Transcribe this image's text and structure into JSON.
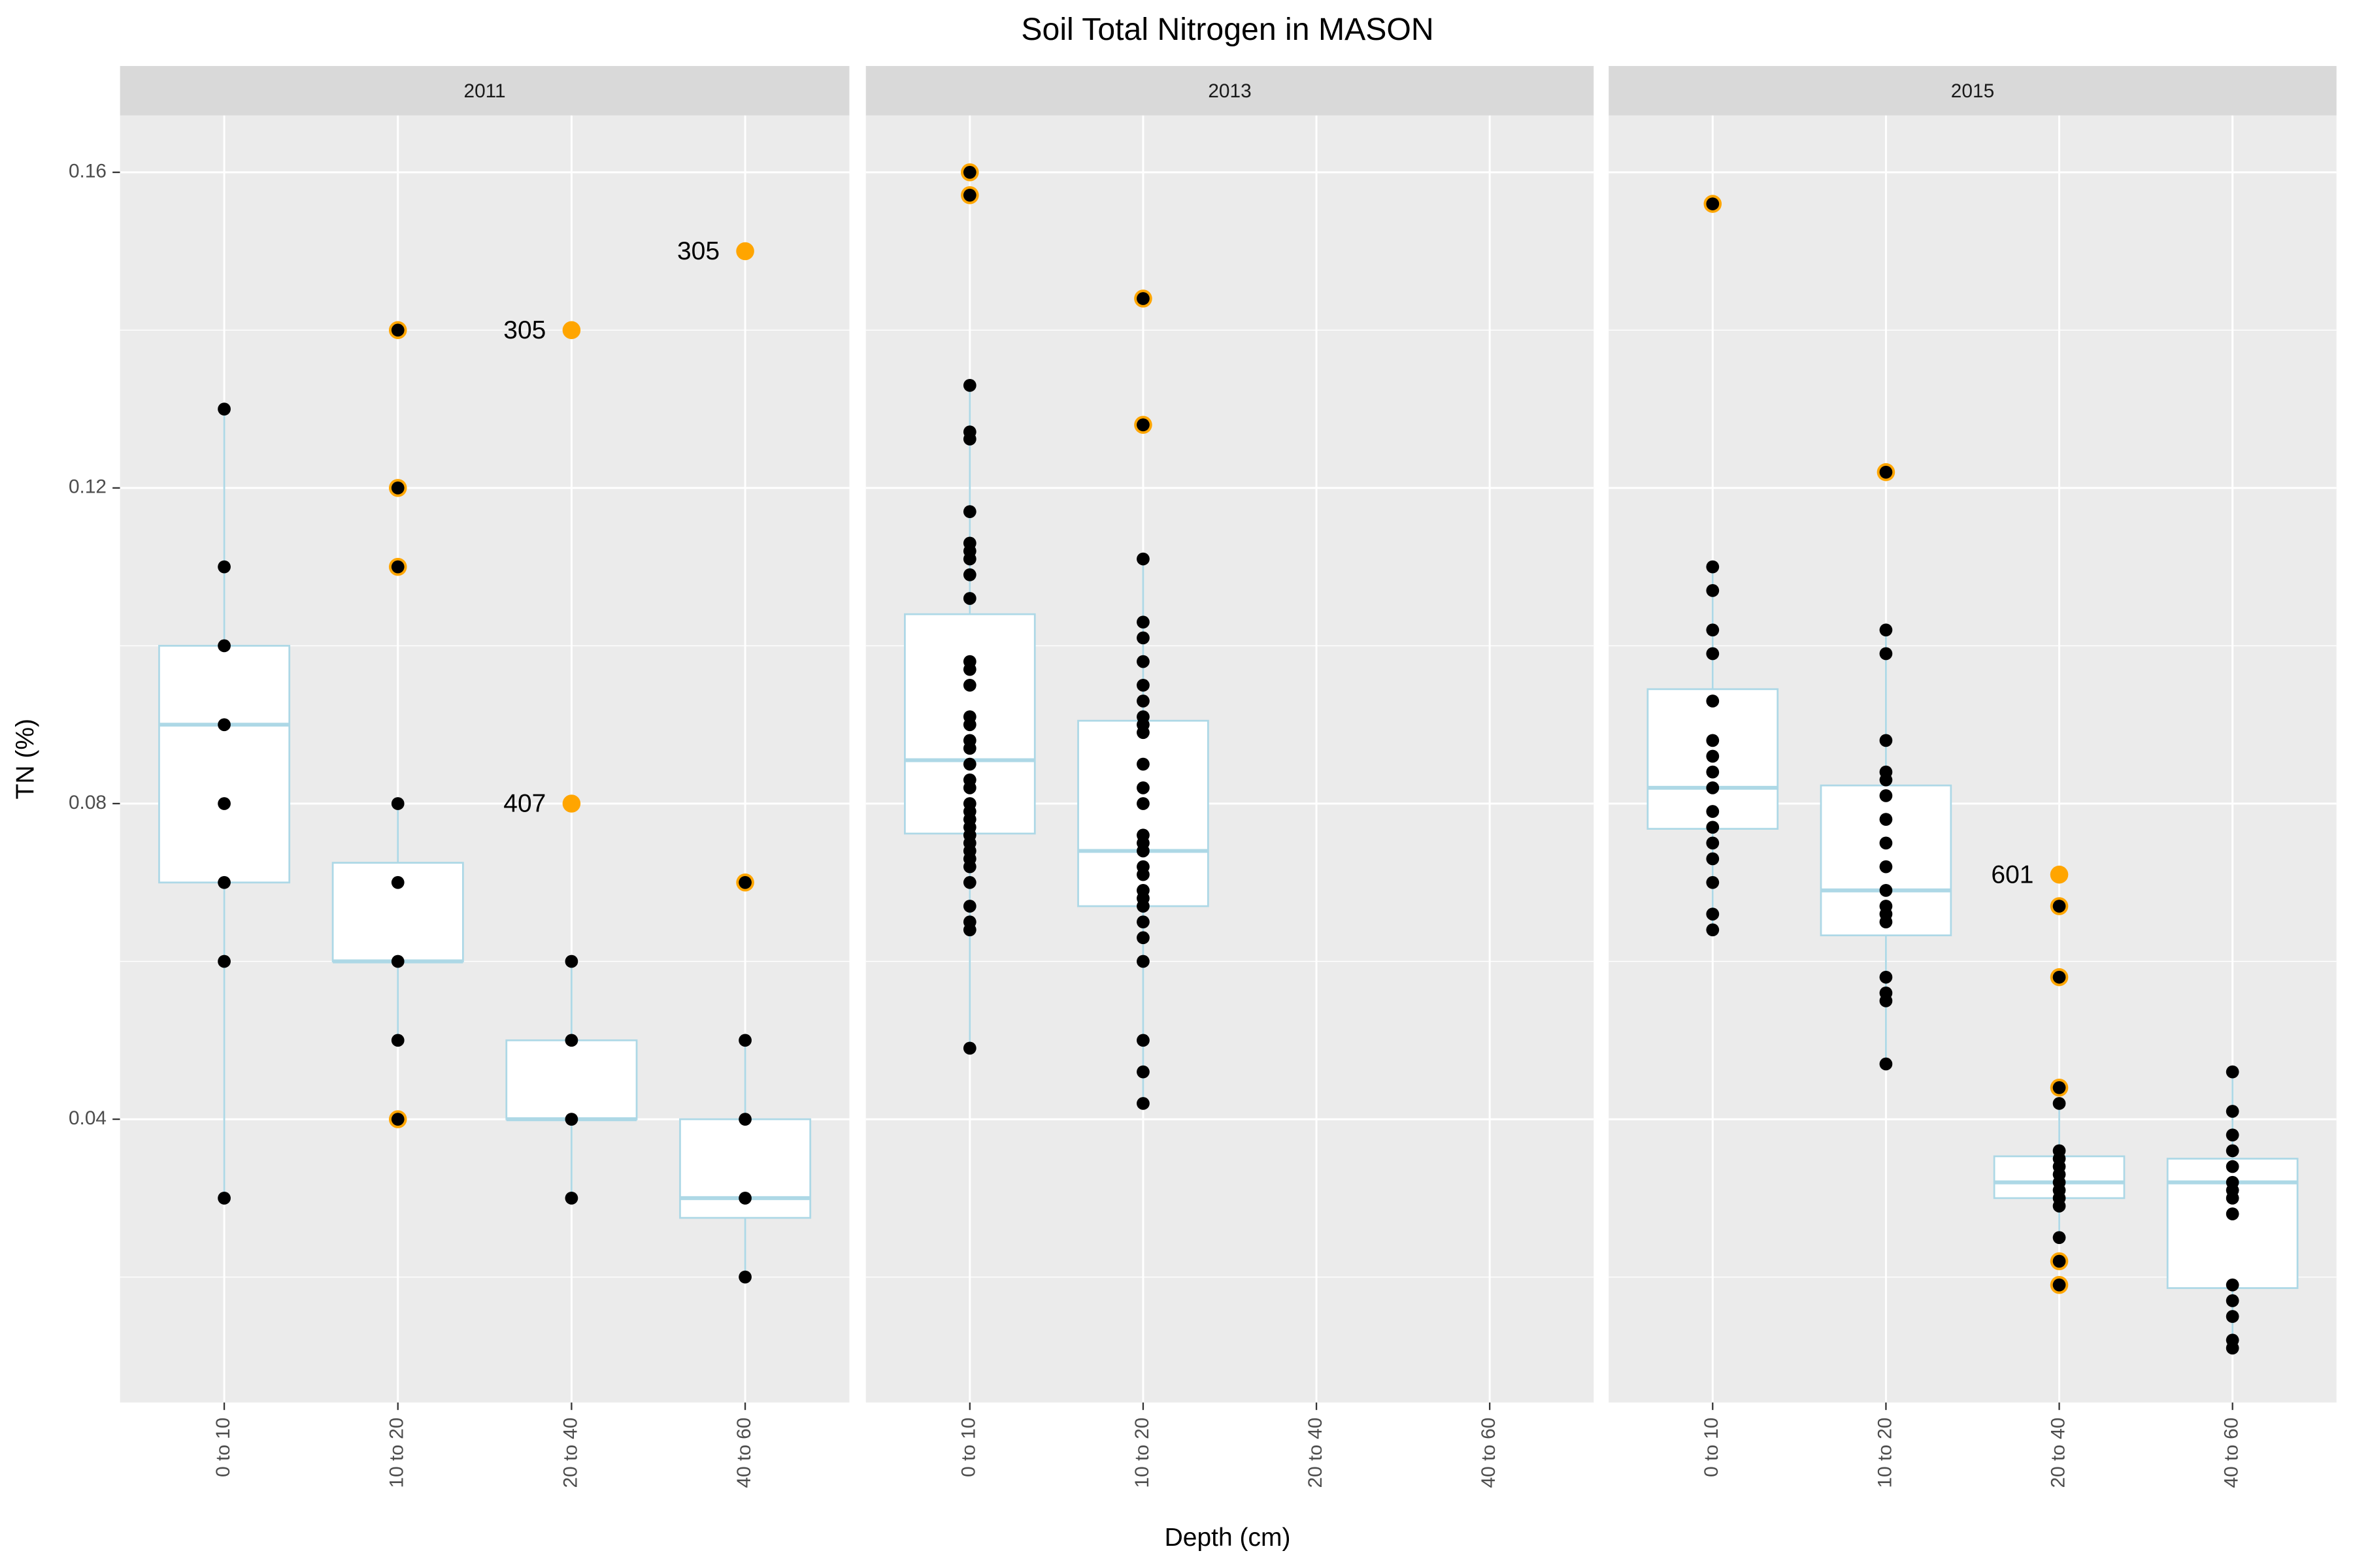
{
  "chart_data": {
    "type": "box",
    "title": "Soil Total Nitrogen in MASON",
    "xlabel": "Depth (cm)",
    "ylabel": "TN (%)",
    "categories": [
      "0 to 10",
      "10 to 20",
      "20 to 40",
      "40 to 60"
    ],
    "ylim": [
      0.0041,
      0.1672
    ],
    "yticks": [
      0.04,
      0.08,
      0.12,
      0.16
    ],
    "minor_yticks": [
      0.02,
      0.06,
      0.1,
      0.14
    ],
    "grid": true,
    "box_color": "#add8e6",
    "point_color": "#000000",
    "outlier_color": "#ffa500",
    "panels": [
      {
        "name": "2011",
        "boxes": [
          {
            "min": 0.03,
            "q1": 0.07,
            "median": 0.09,
            "q3": 0.1,
            "max": 0.13,
            "points": [
              0.13,
              0.11,
              0.1,
              0.09,
              0.08,
              0.07,
              0.06,
              0.03
            ],
            "outliers": [],
            "outlier_labels": []
          },
          {
            "min": 0.05,
            "q1": 0.06,
            "median": 0.06,
            "q3": 0.0725,
            "max": 0.08,
            "points": [
              0.14,
              0.12,
              0.11,
              0.08,
              0.07,
              0.06,
              0.05,
              0.04
            ],
            "outliers": [
              0.14,
              0.12,
              0.11,
              0.04
            ],
            "outlier_labels": [
              null,
              null,
              null,
              null
            ]
          },
          {
            "min": 0.03,
            "q1": 0.04,
            "median": 0.04,
            "q3": 0.05,
            "max": 0.06,
            "points": [
              0.06,
              0.05,
              0.04,
              0.03
            ],
            "outliers": [
              0.14,
              0.08
            ],
            "outlier_labels": [
              "305",
              "407"
            ]
          },
          {
            "min": 0.02,
            "q1": 0.0275,
            "median": 0.03,
            "q3": 0.04,
            "max": 0.05,
            "points": [
              0.07,
              0.05,
              0.04,
              0.03,
              0.02
            ],
            "outliers": [
              0.15,
              0.07
            ],
            "outlier_labels": [
              "305",
              null
            ]
          }
        ]
      },
      {
        "name": "2013",
        "boxes": [
          {
            "min": 0.049,
            "q1": 0.0762,
            "median": 0.0855,
            "q3": 0.104,
            "max": 0.133,
            "points": [
              0.16,
              0.1571,
              0.133,
              0.1271,
              0.1262,
              0.117,
              0.113,
              0.112,
              0.111,
              0.109,
              0.106,
              0.098,
              0.097,
              0.095,
              0.091,
              0.09,
              0.088,
              0.087,
              0.085,
              0.083,
              0.082,
              0.08,
              0.079,
              0.078,
              0.077,
              0.076,
              0.075,
              0.074,
              0.073,
              0.072,
              0.07,
              0.067,
              0.065,
              0.064,
              0.049
            ],
            "outliers": [
              0.16,
              0.1571
            ],
            "outlier_labels": [
              null,
              null
            ]
          },
          {
            "min": 0.042,
            "q1": 0.067,
            "median": 0.074,
            "q3": 0.0905,
            "max": 0.111,
            "points": [
              0.144,
              0.128,
              0.111,
              0.103,
              0.101,
              0.098,
              0.095,
              0.093,
              0.091,
              0.09,
              0.089,
              0.085,
              0.082,
              0.08,
              0.076,
              0.075,
              0.074,
              0.072,
              0.071,
              0.069,
              0.068,
              0.067,
              0.065,
              0.063,
              0.06,
              0.05,
              0.046,
              0.042
            ],
            "outliers": [
              0.144,
              0.128
            ],
            "outlier_labels": [
              null,
              null
            ]
          },
          null,
          null
        ]
      },
      {
        "name": "2015",
        "boxes": [
          {
            "min": 0.064,
            "q1": 0.0768,
            "median": 0.082,
            "q3": 0.0945,
            "max": 0.11,
            "points": [
              0.156,
              0.11,
              0.107,
              0.102,
              0.099,
              0.093,
              0.088,
              0.086,
              0.084,
              0.082,
              0.079,
              0.077,
              0.075,
              0.073,
              0.07,
              0.066,
              0.064
            ],
            "outliers": [
              0.156
            ],
            "outlier_labels": [
              null
            ]
          },
          {
            "min": 0.047,
            "q1": 0.0633,
            "median": 0.069,
            "q3": 0.0823,
            "max": 0.102,
            "points": [
              0.122,
              0.102,
              0.099,
              0.088,
              0.084,
              0.083,
              0.081,
              0.078,
              0.075,
              0.072,
              0.069,
              0.067,
              0.066,
              0.065,
              0.058,
              0.056,
              0.055,
              0.047
            ],
            "outliers": [
              0.122
            ],
            "outlier_labels": [
              null
            ]
          },
          {
            "min": 0.025,
            "q1": 0.03,
            "median": 0.032,
            "q3": 0.0353,
            "max": 0.042,
            "points": [
              0.067,
              0.058,
              0.044,
              0.042,
              0.036,
              0.035,
              0.034,
              0.033,
              0.032,
              0.031,
              0.03,
              0.029,
              0.025,
              0.022,
              0.019
            ],
            "outliers": [
              0.071,
              0.067,
              0.058,
              0.044,
              0.022,
              0.019
            ],
            "outlier_labels": [
              "601",
              null,
              null,
              null,
              null,
              null
            ]
          },
          {
            "min": 0.011,
            "q1": 0.0186,
            "median": 0.032,
            "q3": 0.035,
            "max": 0.046,
            "points": [
              0.046,
              0.041,
              0.038,
              0.036,
              0.034,
              0.032,
              0.031,
              0.03,
              0.028,
              0.019,
              0.017,
              0.015,
              0.012,
              0.011
            ],
            "outliers": [],
            "outlier_labels": []
          }
        ]
      }
    ]
  }
}
